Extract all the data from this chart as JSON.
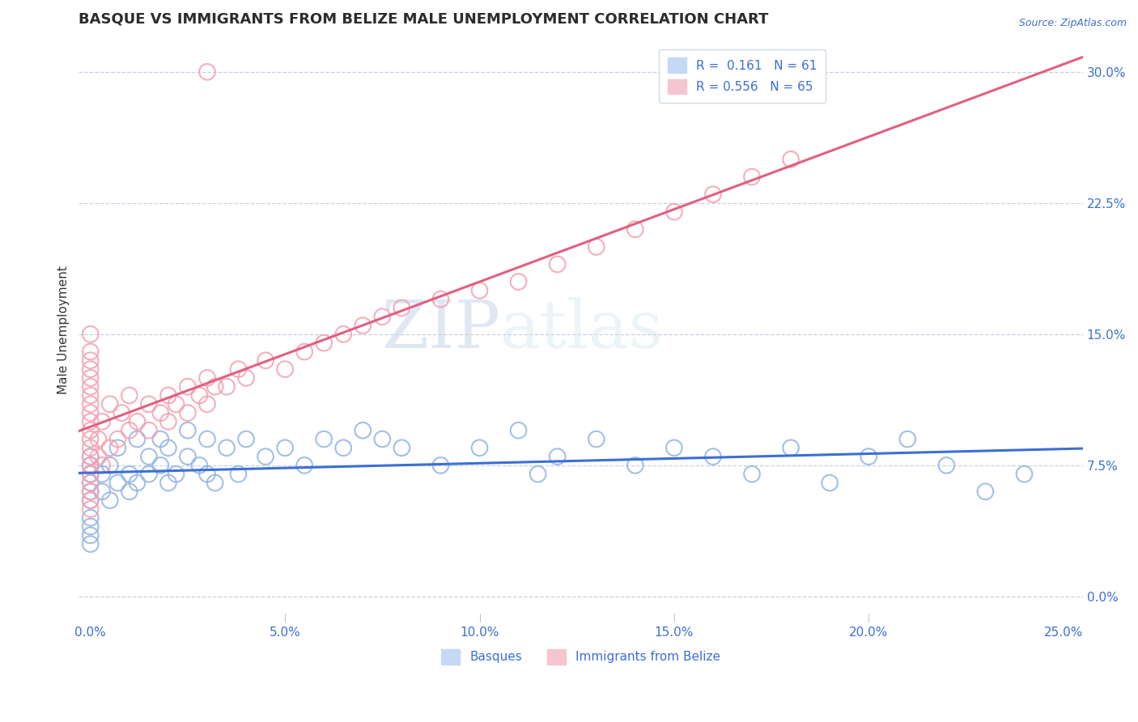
{
  "title": "BASQUE VS IMMIGRANTS FROM BELIZE MALE UNEMPLOYMENT CORRELATION CHART",
  "source": "Source: ZipAtlas.com",
  "xlim": [
    -0.3,
    25.5
  ],
  "ylim": [
    -1.5,
    32.0
  ],
  "ylabel": "Male Unemployment",
  "legend_labels": [
    "Basques",
    "Immigrants from Belize"
  ],
  "blue_R": 0.161,
  "blue_N": 61,
  "pink_R": 0.556,
  "pink_N": 65,
  "blue_color": "#92b4e3",
  "pink_color": "#f4a0b0",
  "blue_line_color": "#3b6fd4",
  "pink_line_color": "#e06080",
  "watermark_zip": "ZIP",
  "watermark_atlas": "atlas",
  "title_fontsize": 13,
  "blue_scatter_x": [
    0.0,
    0.0,
    0.0,
    0.0,
    0.0,
    0.0,
    0.0,
    0.0,
    0.0,
    0.0,
    0.3,
    0.3,
    0.5,
    0.5,
    0.7,
    0.7,
    1.0,
    1.0,
    1.2,
    1.2,
    1.5,
    1.5,
    1.8,
    1.8,
    2.0,
    2.0,
    2.2,
    2.5,
    2.5,
    2.8,
    3.0,
    3.0,
    3.2,
    3.5,
    3.8,
    4.0,
    4.5,
    5.0,
    5.5,
    6.0,
    6.5,
    7.0,
    7.5,
    8.0,
    9.0,
    10.0,
    11.0,
    11.5,
    12.0,
    13.0,
    14.0,
    15.0,
    16.0,
    17.0,
    18.0,
    19.0,
    20.0,
    21.0,
    22.0,
    23.0,
    24.0
  ],
  "blue_scatter_y": [
    5.5,
    6.0,
    6.5,
    7.0,
    7.5,
    4.5,
    4.0,
    3.5,
    3.0,
    8.0,
    6.0,
    7.0,
    5.5,
    7.5,
    6.5,
    8.5,
    6.0,
    7.0,
    6.5,
    9.0,
    7.0,
    8.0,
    7.5,
    9.0,
    6.5,
    8.5,
    7.0,
    8.0,
    9.5,
    7.5,
    7.0,
    9.0,
    6.5,
    8.5,
    7.0,
    9.0,
    8.0,
    8.5,
    7.5,
    9.0,
    8.5,
    9.5,
    9.0,
    8.5,
    7.5,
    8.5,
    9.5,
    7.0,
    8.0,
    9.0,
    7.5,
    8.5,
    8.0,
    7.0,
    8.5,
    6.5,
    8.0,
    9.0,
    7.5,
    6.0,
    7.0
  ],
  "pink_scatter_x": [
    0.0,
    0.0,
    0.0,
    0.0,
    0.0,
    0.0,
    0.0,
    0.0,
    0.0,
    0.0,
    0.0,
    0.0,
    0.0,
    0.0,
    0.0,
    0.0,
    0.0,
    0.0,
    0.0,
    0.0,
    0.2,
    0.2,
    0.3,
    0.3,
    0.5,
    0.5,
    0.7,
    0.8,
    1.0,
    1.0,
    1.2,
    1.5,
    1.5,
    1.8,
    2.0,
    2.0,
    2.2,
    2.5,
    2.5,
    2.8,
    3.0,
    3.0,
    3.2,
    3.5,
    3.8,
    4.0,
    4.5,
    5.0,
    5.5,
    6.0,
    6.5,
    7.0,
    7.5,
    8.0,
    9.0,
    10.0,
    11.0,
    12.0,
    13.0,
    14.0,
    15.0,
    16.0,
    17.0,
    18.0,
    3.0
  ],
  "pink_scatter_y": [
    5.0,
    5.5,
    6.0,
    6.5,
    7.0,
    7.5,
    8.0,
    8.5,
    9.0,
    9.5,
    10.0,
    10.5,
    11.0,
    11.5,
    12.0,
    12.5,
    13.0,
    13.5,
    14.0,
    15.0,
    8.0,
    9.0,
    7.5,
    10.0,
    8.5,
    11.0,
    9.0,
    10.5,
    9.5,
    11.5,
    10.0,
    9.5,
    11.0,
    10.5,
    10.0,
    11.5,
    11.0,
    10.5,
    12.0,
    11.5,
    11.0,
    12.5,
    12.0,
    12.0,
    13.0,
    12.5,
    13.5,
    13.0,
    14.0,
    14.5,
    15.0,
    15.5,
    16.0,
    16.5,
    17.0,
    17.5,
    18.0,
    19.0,
    20.0,
    21.0,
    22.0,
    23.0,
    24.0,
    25.0,
    30.0
  ]
}
